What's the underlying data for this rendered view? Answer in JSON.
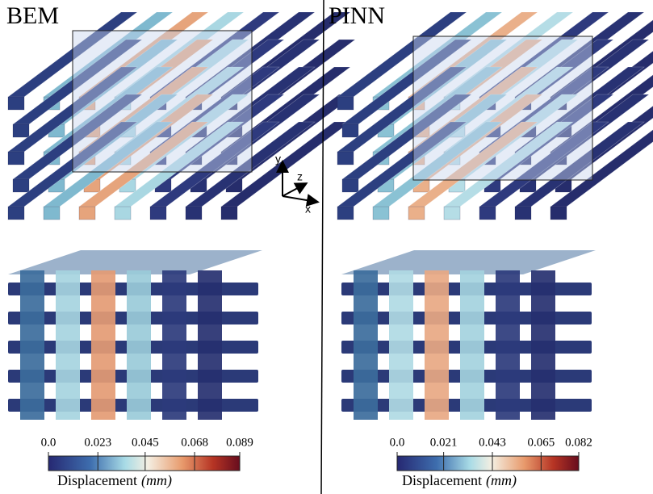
{
  "panels": [
    {
      "label": "BEM"
    },
    {
      "label": "PINN"
    }
  ],
  "axes": {
    "y": "y",
    "z": "z",
    "x": "x"
  },
  "colorbars": [
    {
      "title": "Displacement",
      "unit": "(mm)",
      "range": [
        0,
        0.089
      ],
      "ticks": [
        {
          "value": 0,
          "label": "0.0"
        },
        0.023,
        0.045,
        0.068,
        0.089
      ]
    },
    {
      "title": "Displacement",
      "unit": "(mm)",
      "range": [
        0,
        0.082
      ],
      "ticks": [
        {
          "value": 0,
          "label": "0.0"
        },
        0.021,
        0.043,
        0.065,
        0.082
      ]
    }
  ]
}
